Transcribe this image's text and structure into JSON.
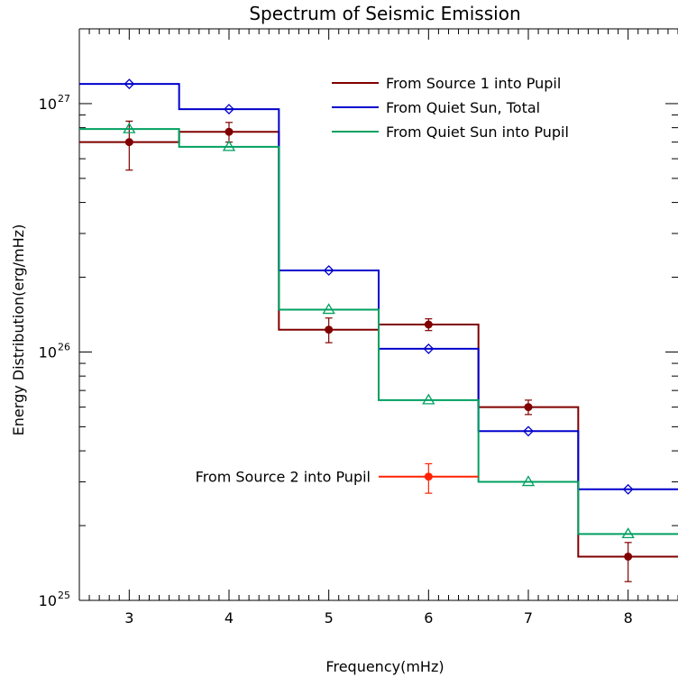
{
  "chart_data": {
    "type": "line",
    "title": "Spectrum of Seismic Emission",
    "xlabel": "Frequency(mHz)",
    "ylabel": "Energy Distribution(erg/mHz)",
    "xlim": [
      2.5,
      8.5
    ],
    "ylim": [
      1e+25,
      2e+27
    ],
    "yscale": "log",
    "xticks": [
      3,
      4,
      5,
      6,
      7,
      8
    ],
    "yticks": [
      {
        "value": 1e+25,
        "base": "10",
        "exp": "25"
      },
      {
        "value": 1e+26,
        "base": "10",
        "exp": "26"
      },
      {
        "value": 1e+27,
        "base": "10",
        "exp": "27"
      }
    ],
    "step_half_width": 0.5,
    "series": [
      {
        "name": "From Source 1 into Pupil",
        "color": "#800000",
        "marker": "filled-circle",
        "x": [
          3,
          4,
          5,
          6,
          7,
          8
        ],
        "y": [
          7e+26,
          7.7e+26,
          1.23e+26,
          1.29e+26,
          6e+25,
          1.5e+25
        ],
        "err_low": [
          5.4e+26,
          7e+26,
          1.09e+26,
          1.22e+26,
          5.6e+25,
          1.19e+25
        ],
        "err_high": [
          8.5e+26,
          8.4e+26,
          1.37e+26,
          1.36e+26,
          6.4e+25,
          1.71e+25
        ]
      },
      {
        "name": "From Quiet Sun, Total",
        "color": "#0000cc",
        "marker": "diamond",
        "x": [
          3,
          4,
          5,
          6,
          7,
          8
        ],
        "y": [
          1.2e+27,
          9.5e+26,
          2.13e+26,
          1.03e+26,
          4.8e+25,
          2.8e+25
        ]
      },
      {
        "name": "From Quiet Sun into Pupil",
        "color": "#00a060",
        "marker": "triangle",
        "x": [
          3,
          4,
          5,
          6,
          7,
          8
        ],
        "y": [
          7.9e+26,
          6.7e+26,
          1.48e+26,
          6.4e+25,
          3e+25,
          1.85e+25
        ]
      },
      {
        "name": "From Source 2 into Pupil",
        "color": "#ff2200",
        "marker": "filled-circle",
        "x": [
          6
        ],
        "y": [
          3.15e+25
        ],
        "err_low": [
          2.7e+25
        ],
        "err_high": [
          3.55e+25
        ]
      }
    ],
    "legend": {
      "placement": "top-right",
      "entries": [
        "From Source 1 into Pupil",
        "From Quiet Sun, Total",
        "From Quiet Sun into Pupil"
      ]
    },
    "annotations": [
      {
        "text": "From Source 2 into Pupil",
        "series": "From Source 2 into Pupil"
      }
    ]
  }
}
